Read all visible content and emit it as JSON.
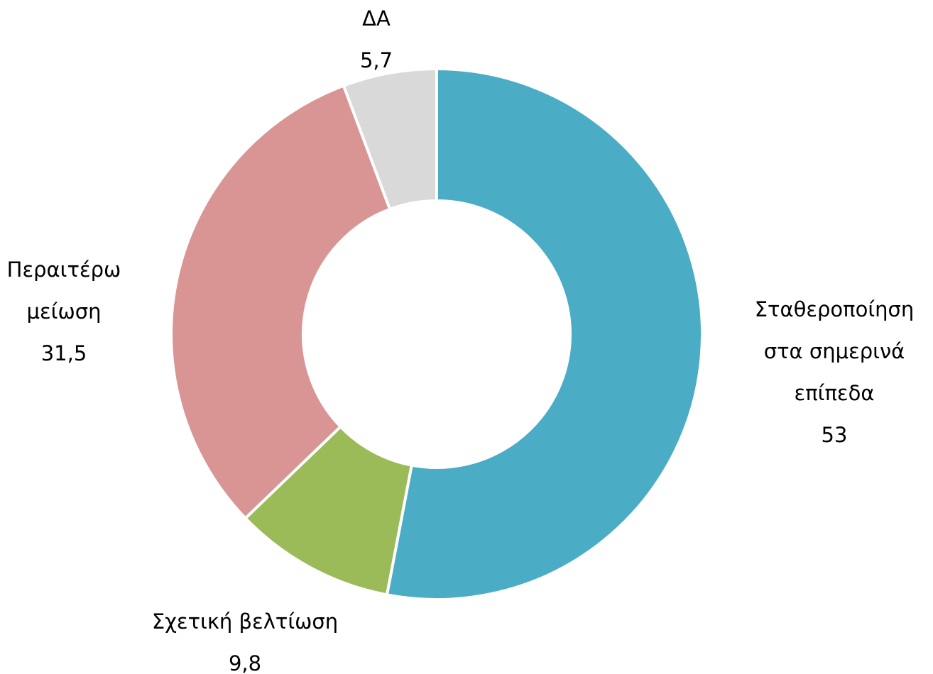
{
  "chart_data": {
    "type": "donut",
    "categories": [
      [
        "Σταθεροποίηση",
        "στα σημερινά",
        "επίπεδα"
      ],
      [
        "Σχετική βελτίωση"
      ],
      [
        "Περαιτέρω",
        "μείωση"
      ],
      [
        "ΔΑ"
      ]
    ],
    "values": [
      53,
      9.8,
      31.5,
      5.7
    ],
    "value_labels": [
      "53",
      "9,8",
      "31,5",
      "5,7"
    ],
    "colors": [
      "#4bacc6",
      "#9bbb59",
      "#d99594",
      "#d9d9d9"
    ]
  }
}
